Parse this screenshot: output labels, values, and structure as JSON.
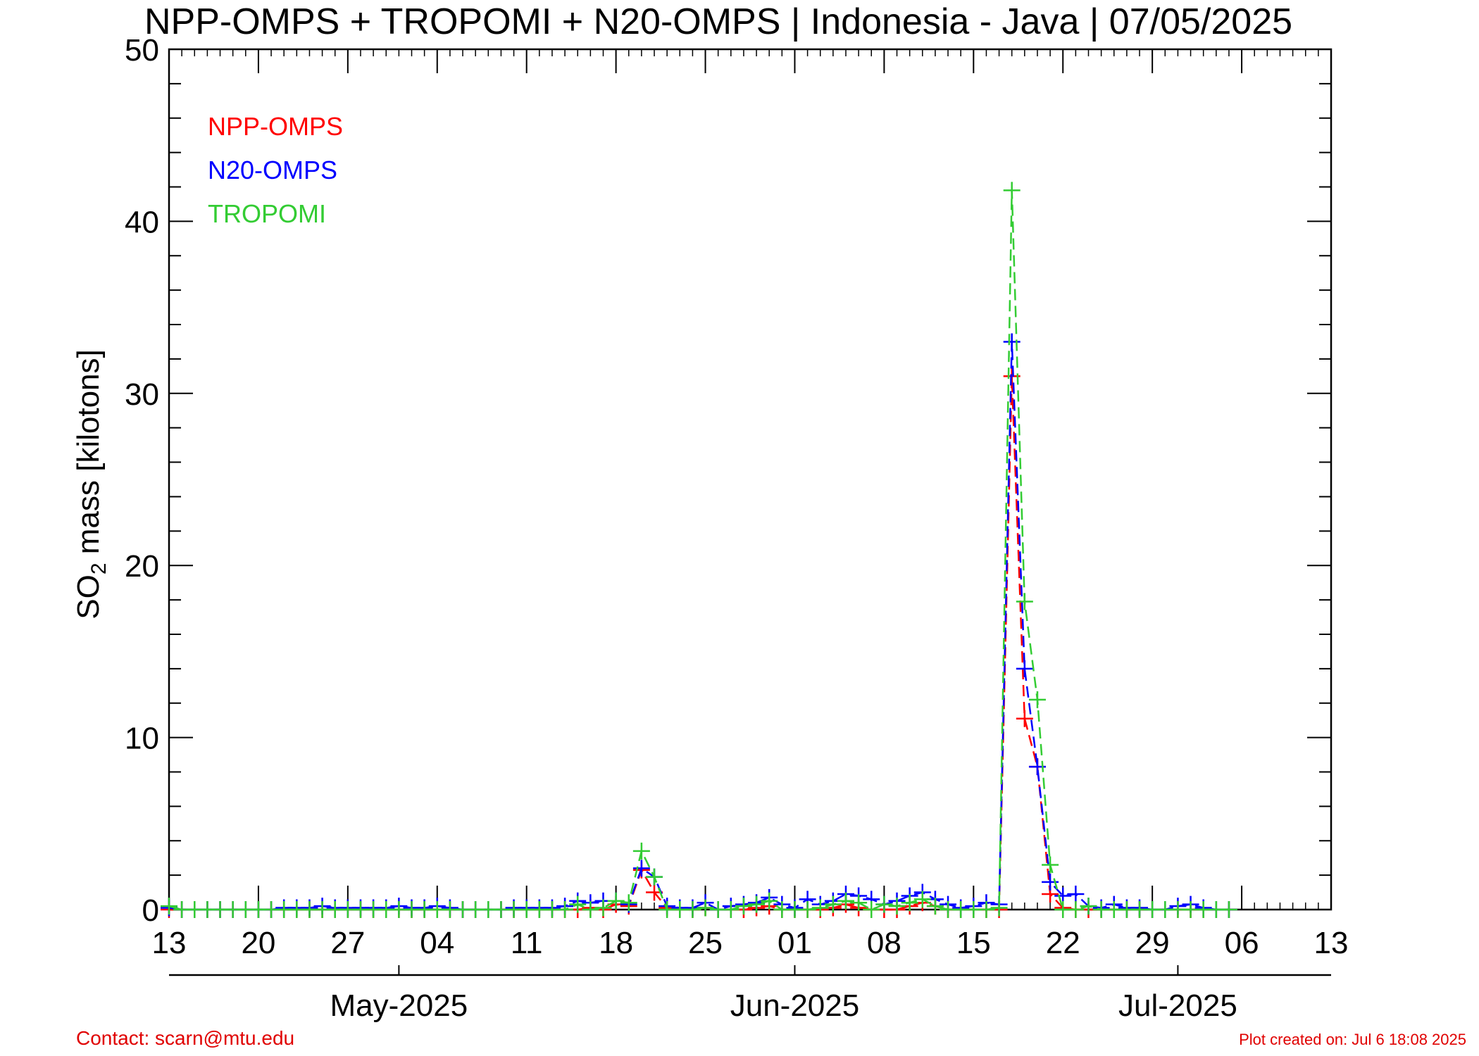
{
  "chart_data": {
    "type": "line",
    "title": "NPP-OMPS + TROPOMI + N20-OMPS | Indonesia - Java | 07/05/2025",
    "ylabel": {
      "prefix": "SO",
      "sub": "2",
      "suffix": " mass [kilotons]"
    },
    "ylim": [
      0,
      50
    ],
    "xlim": [
      "2025-04-13",
      "2025-07-13"
    ],
    "y_ticks": [
      0,
      10,
      20,
      30,
      40,
      50
    ],
    "x_ticks": [
      {
        "date": "2025-04-13",
        "label": "13"
      },
      {
        "date": "2025-04-20",
        "label": "20"
      },
      {
        "date": "2025-04-27",
        "label": "27"
      },
      {
        "date": "2025-05-04",
        "label": "04"
      },
      {
        "date": "2025-05-11",
        "label": "11"
      },
      {
        "date": "2025-05-18",
        "label": "18"
      },
      {
        "date": "2025-05-25",
        "label": "25"
      },
      {
        "date": "2025-06-01",
        "label": "01"
      },
      {
        "date": "2025-06-08",
        "label": "08"
      },
      {
        "date": "2025-06-15",
        "label": "15"
      },
      {
        "date": "2025-06-22",
        "label": "22"
      },
      {
        "date": "2025-06-29",
        "label": "29"
      },
      {
        "date": "2025-07-06",
        "label": "06"
      },
      {
        "date": "2025-07-13",
        "label": "13"
      }
    ],
    "months": [
      {
        "date": "2025-05-01",
        "label": "May-2025"
      },
      {
        "date": "2025-06-01",
        "label": "Jun-2025"
      },
      {
        "date": "2025-07-01",
        "label": "Jul-2025"
      }
    ],
    "legend_position": "top-left",
    "series": [
      {
        "name": "NPP-OMPS",
        "color": "#ff0000",
        "points": [
          [
            "2025-04-13",
            0.0
          ],
          [
            "2025-04-14",
            0.0
          ],
          [
            "2025-04-15",
            0.0
          ],
          [
            "2025-04-16",
            0.0
          ],
          [
            "2025-04-17",
            0.0
          ],
          [
            "2025-04-18",
            0.0
          ],
          [
            "2025-04-19",
            0.0
          ],
          [
            "2025-04-20",
            0.0
          ],
          [
            "2025-04-21",
            0.0
          ],
          [
            "2025-04-22",
            0.0
          ],
          [
            "2025-04-23",
            0.0
          ],
          [
            "2025-04-24",
            0.0
          ],
          [
            "2025-04-25",
            0.0
          ],
          [
            "2025-04-26",
            0.0
          ],
          [
            "2025-04-27",
            0.0
          ],
          [
            "2025-04-28",
            0.0
          ],
          [
            "2025-04-29",
            0.0
          ],
          [
            "2025-04-30",
            0.0
          ],
          [
            "2025-05-01",
            0.0
          ],
          [
            "2025-05-02",
            0.0
          ],
          [
            "2025-05-03",
            0.0
          ],
          [
            "2025-05-04",
            0.0
          ],
          [
            "2025-05-05",
            0.0
          ],
          [
            "2025-05-06",
            0.0
          ],
          [
            "2025-05-07",
            0.0
          ],
          [
            "2025-05-08",
            0.0
          ],
          [
            "2025-05-09",
            0.0
          ],
          [
            "2025-05-10",
            0.0
          ],
          [
            "2025-05-11",
            0.0
          ],
          [
            "2025-05-12",
            0.0
          ],
          [
            "2025-05-13",
            0.0
          ],
          [
            "2025-05-14",
            0.0
          ],
          [
            "2025-05-15",
            0.0
          ],
          [
            "2025-05-16",
            0.1
          ],
          [
            "2025-05-17",
            0.0
          ],
          [
            "2025-05-18",
            0.3
          ],
          [
            "2025-05-19",
            0.2
          ],
          [
            "2025-05-20",
            2.3
          ],
          [
            "2025-05-21",
            1.0
          ],
          [
            "2025-05-22",
            0.1
          ],
          [
            "2025-05-23",
            0.0
          ],
          [
            "2025-05-24",
            0.0
          ],
          [
            "2025-05-25",
            0.1
          ],
          [
            "2025-05-26",
            0.0
          ],
          [
            "2025-05-27",
            0.0
          ],
          [
            "2025-05-28",
            0.0
          ],
          [
            "2025-05-29",
            0.1
          ],
          [
            "2025-05-30",
            0.2
          ],
          [
            "2025-05-31",
            0.0
          ],
          [
            "2025-06-01",
            0.0
          ],
          [
            "2025-06-02",
            0.0
          ],
          [
            "2025-06-03",
            0.0
          ],
          [
            "2025-06-04",
            0.1
          ],
          [
            "2025-06-05",
            0.3
          ],
          [
            "2025-06-06",
            0.1
          ],
          [
            "2025-06-07",
            0.0
          ],
          [
            "2025-06-08",
            0.0
          ],
          [
            "2025-06-09",
            0.0
          ],
          [
            "2025-06-10",
            0.2
          ],
          [
            "2025-06-11",
            0.4
          ],
          [
            "2025-06-12",
            0.2
          ],
          [
            "2025-06-13",
            0.0
          ],
          [
            "2025-06-14",
            0.0
          ],
          [
            "2025-06-15",
            0.0
          ],
          [
            "2025-06-16",
            0.0
          ],
          [
            "2025-06-17",
            0.0
          ],
          [
            "2025-06-18",
            31.0
          ],
          [
            "2025-06-19",
            11.1
          ],
          [
            "2025-06-20",
            8.3
          ],
          [
            "2025-06-21",
            0.9
          ],
          [
            "2025-06-22",
            0.1
          ],
          [
            "2025-06-23",
            0.0
          ],
          [
            "2025-06-24",
            0.0
          ],
          [
            "2025-06-25",
            0.0
          ],
          [
            "2025-06-26",
            0.0
          ],
          [
            "2025-06-27",
            0.0
          ],
          [
            "2025-06-28",
            0.0
          ],
          [
            "2025-06-29",
            0.0
          ],
          [
            "2025-06-30",
            0.0
          ],
          [
            "2025-07-01",
            0.0
          ],
          [
            "2025-07-02",
            0.0
          ],
          [
            "2025-07-03",
            0.0
          ],
          [
            "2025-07-04",
            0.0
          ],
          [
            "2025-07-05",
            0.0
          ]
        ]
      },
      {
        "name": "N20-OMPS",
        "color": "#0000ff",
        "points": [
          [
            "2025-04-13",
            0.1
          ],
          [
            "2025-04-14",
            0.0
          ],
          [
            "2025-04-15",
            0.0
          ],
          [
            "2025-04-16",
            0.0
          ],
          [
            "2025-04-17",
            0.0
          ],
          [
            "2025-04-18",
            0.0
          ],
          [
            "2025-04-19",
            0.0
          ],
          [
            "2025-04-20",
            0.0
          ],
          [
            "2025-04-21",
            0.0
          ],
          [
            "2025-04-22",
            0.1
          ],
          [
            "2025-04-23",
            0.1
          ],
          [
            "2025-04-24",
            0.1
          ],
          [
            "2025-04-25",
            0.2
          ],
          [
            "2025-04-26",
            0.1
          ],
          [
            "2025-04-27",
            0.1
          ],
          [
            "2025-04-28",
            0.1
          ],
          [
            "2025-04-29",
            0.1
          ],
          [
            "2025-04-30",
            0.1
          ],
          [
            "2025-05-01",
            0.2
          ],
          [
            "2025-05-02",
            0.1
          ],
          [
            "2025-05-03",
            0.1
          ],
          [
            "2025-05-04",
            0.2
          ],
          [
            "2025-05-05",
            0.1
          ],
          [
            "2025-05-06",
            0.0
          ],
          [
            "2025-05-07",
            0.0
          ],
          [
            "2025-05-08",
            0.0
          ],
          [
            "2025-05-09",
            0.0
          ],
          [
            "2025-05-10",
            0.1
          ],
          [
            "2025-05-11",
            0.1
          ],
          [
            "2025-05-12",
            0.1
          ],
          [
            "2025-05-13",
            0.1
          ],
          [
            "2025-05-14",
            0.2
          ],
          [
            "2025-05-15",
            0.5
          ],
          [
            "2025-05-16",
            0.4
          ],
          [
            "2025-05-17",
            0.5
          ],
          [
            "2025-05-18",
            0.5
          ],
          [
            "2025-05-19",
            0.3
          ],
          [
            "2025-05-20",
            2.4
          ],
          [
            "2025-05-21",
            1.9
          ],
          [
            "2025-05-22",
            0.2
          ],
          [
            "2025-05-23",
            0.1
          ],
          [
            "2025-05-24",
            0.1
          ],
          [
            "2025-05-25",
            0.4
          ],
          [
            "2025-05-26",
            0.0
          ],
          [
            "2025-05-27",
            0.2
          ],
          [
            "2025-05-28",
            0.3
          ],
          [
            "2025-05-29",
            0.4
          ],
          [
            "2025-05-30",
            0.7
          ],
          [
            "2025-05-31",
            0.3
          ],
          [
            "2025-06-01",
            0.1
          ],
          [
            "2025-06-02",
            0.6
          ],
          [
            "2025-06-03",
            0.3
          ],
          [
            "2025-06-04",
            0.5
          ],
          [
            "2025-06-05",
            0.9
          ],
          [
            "2025-06-06",
            0.8
          ],
          [
            "2025-06-07",
            0.6
          ],
          [
            "2025-06-08",
            0.3
          ],
          [
            "2025-06-09",
            0.5
          ],
          [
            "2025-06-10",
            0.8
          ],
          [
            "2025-06-11",
            1.0
          ],
          [
            "2025-06-12",
            0.6
          ],
          [
            "2025-06-13",
            0.3
          ],
          [
            "2025-06-14",
            0.1
          ],
          [
            "2025-06-15",
            0.2
          ],
          [
            "2025-06-16",
            0.4
          ],
          [
            "2025-06-17",
            0.3
          ],
          [
            "2025-06-18",
            33.0
          ],
          [
            "2025-06-19",
            14.0
          ],
          [
            "2025-06-20",
            8.3
          ],
          [
            "2025-06-21",
            1.6
          ],
          [
            "2025-06-22",
            0.8
          ],
          [
            "2025-06-23",
            0.9
          ],
          [
            "2025-06-24",
            0.2
          ],
          [
            "2025-06-25",
            0.1
          ],
          [
            "2025-06-26",
            0.3
          ],
          [
            "2025-06-27",
            0.1
          ],
          [
            "2025-06-28",
            0.1
          ],
          [
            "2025-06-29",
            0.0
          ],
          [
            "2025-06-30",
            0.0
          ],
          [
            "2025-07-01",
            0.2
          ],
          [
            "2025-07-02",
            0.3
          ],
          [
            "2025-07-03",
            0.1
          ],
          [
            "2025-07-04",
            0.0
          ],
          [
            "2025-07-05",
            0.0
          ]
        ]
      },
      {
        "name": "TROPOMI",
        "color": "#33cc33",
        "points": [
          [
            "2025-04-13",
            0.2
          ],
          [
            "2025-04-14",
            0.0
          ],
          [
            "2025-04-15",
            0.0
          ],
          [
            "2025-04-16",
            0.0
          ],
          [
            "2025-04-17",
            0.0
          ],
          [
            "2025-04-18",
            0.0
          ],
          [
            "2025-04-19",
            0.0
          ],
          [
            "2025-04-20",
            0.0
          ],
          [
            "2025-04-21",
            0.0
          ],
          [
            "2025-04-22",
            0.0
          ],
          [
            "2025-04-23",
            0.0
          ],
          [
            "2025-04-24",
            0.0
          ],
          [
            "2025-04-25",
            0.0
          ],
          [
            "2025-04-26",
            0.0
          ],
          [
            "2025-04-27",
            0.0
          ],
          [
            "2025-04-28",
            0.0
          ],
          [
            "2025-04-29",
            0.0
          ],
          [
            "2025-04-30",
            0.0
          ],
          [
            "2025-05-01",
            0.0
          ],
          [
            "2025-05-02",
            0.0
          ],
          [
            "2025-05-03",
            0.0
          ],
          [
            "2025-05-04",
            0.0
          ],
          [
            "2025-05-05",
            0.0
          ],
          [
            "2025-05-06",
            0.0
          ],
          [
            "2025-05-07",
            0.0
          ],
          [
            "2025-05-08",
            0.0
          ],
          [
            "2025-05-09",
            0.0
          ],
          [
            "2025-05-10",
            0.0
          ],
          [
            "2025-05-11",
            0.0
          ],
          [
            "2025-05-12",
            0.0
          ],
          [
            "2025-05-13",
            0.0
          ],
          [
            "2025-05-14",
            0.0
          ],
          [
            "2025-05-15",
            0.3
          ],
          [
            "2025-05-16",
            0.0
          ],
          [
            "2025-05-17",
            0.1
          ],
          [
            "2025-05-18",
            0.5
          ],
          [
            "2025-05-19",
            0.4
          ],
          [
            "2025-05-20",
            3.4
          ],
          [
            "2025-05-21",
            1.9
          ],
          [
            "2025-05-22",
            0.0
          ],
          [
            "2025-05-23",
            0.0
          ],
          [
            "2025-05-24",
            0.0
          ],
          [
            "2025-05-25",
            0.1
          ],
          [
            "2025-05-26",
            0.0
          ],
          [
            "2025-05-27",
            0.0
          ],
          [
            "2025-05-28",
            0.2
          ],
          [
            "2025-05-29",
            0.3
          ],
          [
            "2025-05-30",
            0.5
          ],
          [
            "2025-05-31",
            0.0
          ],
          [
            "2025-06-01",
            0.0
          ],
          [
            "2025-06-02",
            0.0
          ],
          [
            "2025-06-03",
            0.1
          ],
          [
            "2025-06-04",
            0.3
          ],
          [
            "2025-06-05",
            0.5
          ],
          [
            "2025-06-06",
            0.4
          ],
          [
            "2025-06-07",
            0.0
          ],
          [
            "2025-06-08",
            0.3
          ],
          [
            "2025-06-09",
            0.2
          ],
          [
            "2025-06-10",
            0.4
          ],
          [
            "2025-06-11",
            0.6
          ],
          [
            "2025-06-12",
            0.2
          ],
          [
            "2025-06-13",
            0.0
          ],
          [
            "2025-06-14",
            0.0
          ],
          [
            "2025-06-15",
            0.0
          ],
          [
            "2025-06-16",
            0.0
          ],
          [
            "2025-06-17",
            0.1
          ],
          [
            "2025-06-18",
            41.8
          ],
          [
            "2025-06-19",
            17.9
          ],
          [
            "2025-06-20",
            12.2
          ],
          [
            "2025-06-21",
            2.6
          ],
          [
            "2025-06-22",
            0.0
          ],
          [
            "2025-06-23",
            0.0
          ],
          [
            "2025-06-24",
            0.2
          ],
          [
            "2025-06-25",
            0.0
          ],
          [
            "2025-06-26",
            0.0
          ],
          [
            "2025-06-27",
            0.0
          ],
          [
            "2025-06-28",
            0.0
          ],
          [
            "2025-06-29",
            0.0
          ],
          [
            "2025-06-30",
            0.0
          ],
          [
            "2025-07-01",
            0.0
          ],
          [
            "2025-07-02",
            0.0
          ],
          [
            "2025-07-03",
            0.0
          ],
          [
            "2025-07-04",
            0.0
          ],
          [
            "2025-07-05",
            0.0
          ]
        ]
      }
    ]
  },
  "footer": {
    "contact": "Contact: scarn@mtu.edu",
    "created": "Plot created on: Jul  6 18:08 2025"
  }
}
